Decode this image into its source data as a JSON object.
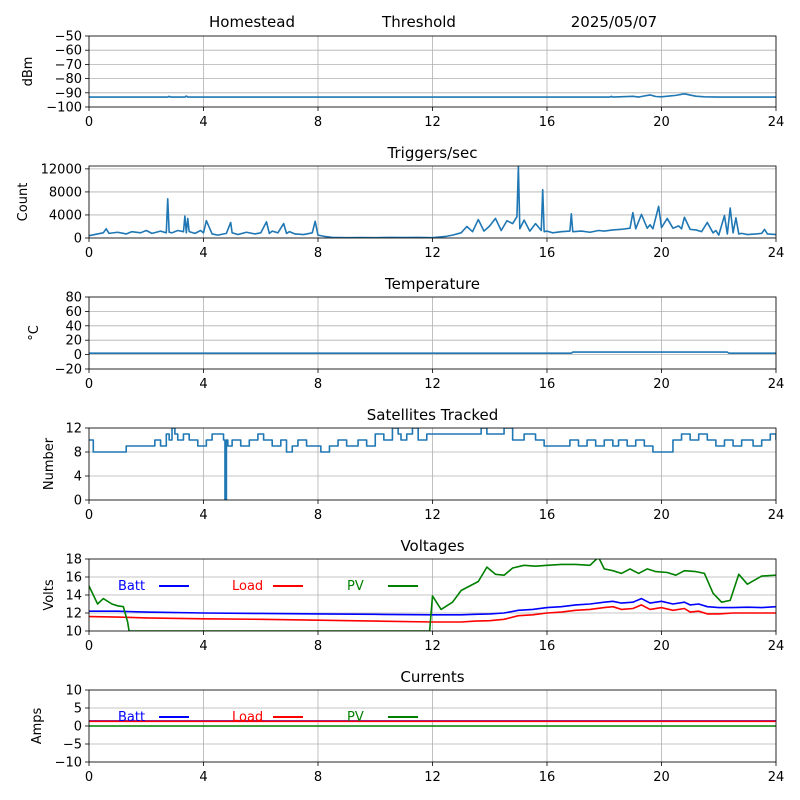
{
  "header": {
    "station": "Homestead",
    "threshold": "Threshold",
    "date": "2025/05/07"
  },
  "colors": {
    "series": "#1f77b4",
    "batt": "#0000ff",
    "load": "#ff0000",
    "pv": "#008000",
    "grid": "#b0b0b0"
  },
  "chart_data": [
    {
      "type": "line",
      "title": "",
      "ylabel": "dBm",
      "xlim": [
        0,
        24
      ],
      "ylim": [
        -100,
        -50
      ],
      "xticks": [
        0,
        4,
        8,
        12,
        16,
        20,
        24
      ],
      "yticks": [
        -100,
        -90,
        -80,
        -70,
        -60,
        -50
      ],
      "grid": true,
      "series": [
        {
          "color": "#1f77b4",
          "x": [
            0,
            2.75,
            2.8,
            2.85,
            3.35,
            3.4,
            3.45,
            8,
            12,
            16,
            18.2,
            18.25,
            18.3,
            19,
            19.2,
            19.3,
            19.6,
            19.8,
            20,
            20.3,
            20.5,
            20.8,
            21,
            21.2,
            21.5,
            22,
            24
          ],
          "y": [
            -93,
            -93,
            -92.5,
            -93,
            -93,
            -92.3,
            -93,
            -93,
            -93,
            -93,
            -93,
            -92.5,
            -93,
            -92.5,
            -93,
            -92.6,
            -91.5,
            -92.6,
            -92.8,
            -92.2,
            -91.8,
            -90.7,
            -91.6,
            -92.4,
            -92.8,
            -93,
            -93
          ]
        }
      ]
    },
    {
      "type": "line",
      "title": "Triggers/sec",
      "ylabel": "Count",
      "xlim": [
        0,
        24
      ],
      "ylim": [
        0,
        12500
      ],
      "xticks": [
        0,
        4,
        8,
        12,
        16,
        20,
        24
      ],
      "yticks": [
        0,
        4000,
        8000,
        12000
      ],
      "grid": true,
      "series": [
        {
          "color": "#1f77b4",
          "x": [
            0,
            0.3,
            0.5,
            0.6,
            0.7,
            1.0,
            1.3,
            1.5,
            1.8,
            2.0,
            2.2,
            2.5,
            2.7,
            2.75,
            2.8,
            2.9,
            3.1,
            3.3,
            3.35,
            3.4,
            3.45,
            3.5,
            3.7,
            3.9,
            4.0,
            4.1,
            4.3,
            4.5,
            4.8,
            4.95,
            5.0,
            5.2,
            5.5,
            5.8,
            6.0,
            6.2,
            6.3,
            6.4,
            6.6,
            6.8,
            6.9,
            7.0,
            7.2,
            7.5,
            7.8,
            7.9,
            8.0,
            8.2,
            8.5,
            9.0,
            9.5,
            10.0,
            10.5,
            11.0,
            11.5,
            12.0,
            12.5,
            12.7,
            13.0,
            13.2,
            13.4,
            13.6,
            13.8,
            14.0,
            14.2,
            14.4,
            14.6,
            14.8,
            14.95,
            15.0,
            15.05,
            15.2,
            15.4,
            15.6,
            15.8,
            15.85,
            15.9,
            16.0,
            16.2,
            16.5,
            16.8,
            16.85,
            16.9,
            17.2,
            17.5,
            17.8,
            18.0,
            18.3,
            18.6,
            18.9,
            19.0,
            19.1,
            19.3,
            19.5,
            19.6,
            19.7,
            19.9,
            20.0,
            20.2,
            20.4,
            20.6,
            20.7,
            20.8,
            21.0,
            21.2,
            21.4,
            21.6,
            21.8,
            21.9,
            22.0,
            22.2,
            22.3,
            22.4,
            22.5,
            22.6,
            22.7,
            22.8,
            23.0,
            23.3,
            23.5,
            23.6,
            23.7,
            24.0
          ],
          "y": [
            400,
            700,
            900,
            1600,
            800,
            1000,
            700,
            1100,
            900,
            1300,
            800,
            1200,
            900,
            6800,
            1000,
            900,
            1300,
            1100,
            3800,
            900,
            3400,
            1100,
            800,
            1300,
            900,
            3000,
            700,
            500,
            800,
            2700,
            900,
            600,
            1000,
            700,
            900,
            2800,
            800,
            1200,
            900,
            2500,
            800,
            1100,
            700,
            600,
            900,
            2900,
            500,
            300,
            100,
            50,
            80,
            60,
            90,
            70,
            100,
            60,
            300,
            500,
            900,
            2000,
            1100,
            3200,
            1200,
            2100,
            3400,
            1300,
            3000,
            2500,
            3700,
            12400,
            1600,
            3100,
            1200,
            2500,
            1300,
            8400,
            1100,
            1200,
            900,
            1100,
            1200,
            4200,
            1100,
            1200,
            1000,
            1300,
            1200,
            1400,
            1500,
            1700,
            4400,
            1600,
            4100,
            1700,
            2300,
            1600,
            5500,
            1800,
            3400,
            1700,
            2100,
            1600,
            3600,
            1500,
            1400,
            1100,
            2700,
            900,
            1300,
            500,
            3900,
            700,
            5200,
            900,
            3500,
            700,
            800,
            600,
            700,
            800,
            1500,
            700,
            600
          ]
        }
      ]
    },
    {
      "type": "line",
      "title": "Temperature",
      "ylabel": "°C",
      "xlim": [
        0,
        24
      ],
      "ylim": [
        -20,
        80
      ],
      "xticks": [
        0,
        4,
        8,
        12,
        16,
        20,
        24
      ],
      "yticks": [
        -20,
        0,
        20,
        40,
        60,
        80
      ],
      "grid": true,
      "series": [
        {
          "color": "#1f77b4",
          "x": [
            0,
            16.85,
            16.9,
            22.3,
            22.35,
            24
          ],
          "y": [
            2,
            2,
            3.5,
            3.5,
            2,
            2
          ]
        }
      ]
    },
    {
      "type": "line",
      "title": "Satellites Tracked",
      "ylabel": "Number",
      "xlim": [
        0,
        24
      ],
      "ylim": [
        0,
        12
      ],
      "xticks": [
        0,
        4,
        8,
        12,
        16,
        20,
        24
      ],
      "yticks": [
        0,
        4,
        8,
        12
      ],
      "grid": true,
      "series": [
        {
          "color": "#1f77b4",
          "step": true,
          "x": [
            0,
            0.15,
            1.1,
            1.3,
            1.8,
            2.3,
            2.5,
            2.7,
            2.8,
            2.9,
            3.0,
            3.1,
            3.3,
            3.5,
            3.8,
            4.1,
            4.3,
            4.7,
            4.75,
            4.8,
            4.85,
            5.0,
            5.3,
            5.6,
            5.9,
            6.1,
            6.4,
            6.7,
            6.9,
            7.1,
            7.3,
            7.6,
            8.1,
            8.4,
            8.7,
            9.0,
            9.4,
            9.7,
            10.0,
            10.3,
            10.6,
            10.8,
            10.9,
            11.1,
            11.3,
            11.5,
            11.8,
            12.1,
            12.4,
            13.0,
            13.5,
            13.7,
            13.9,
            14.2,
            14.5,
            14.8,
            15.2,
            15.6,
            15.9,
            16.5,
            16.8,
            17.1,
            17.4,
            17.7,
            18.0,
            18.3,
            18.5,
            18.8,
            19.1,
            19.4,
            19.7,
            20.2,
            20.4,
            20.7,
            21.0,
            21.3,
            21.6,
            21.9,
            22.2,
            22.5,
            22.8,
            23.2,
            23.5,
            23.8,
            24.0
          ],
          "y": [
            10,
            8,
            8,
            9,
            9,
            10,
            9,
            11,
            10,
            12,
            11,
            10,
            11,
            10,
            9,
            10,
            11,
            10,
            0,
            10,
            9,
            10,
            9,
            10,
            11,
            10,
            9,
            10,
            8,
            9,
            10,
            9,
            8,
            9,
            10,
            9,
            10,
            9,
            11,
            10,
            12,
            11,
            10,
            11,
            12,
            10,
            11,
            11,
            11,
            11,
            11,
            12,
            11,
            11,
            12,
            10,
            11,
            10,
            9,
            9,
            10,
            9,
            10,
            9,
            10,
            9,
            10,
            9,
            10,
            9,
            8,
            8,
            10,
            11,
            10,
            11,
            10,
            9,
            10,
            9,
            10,
            9,
            10,
            11,
            10
          ]
        }
      ]
    },
    {
      "type": "line",
      "title": "Voltages",
      "ylabel": "Volts",
      "xlim": [
        0,
        24
      ],
      "ylim": [
        10,
        18
      ],
      "xticks": [
        0,
        4,
        8,
        12,
        16,
        20,
        24
      ],
      "yticks": [
        10,
        12,
        14,
        16,
        18
      ],
      "grid": true,
      "legend": {
        "entries": [
          "Batt",
          "Load",
          "PV"
        ],
        "position": "upper-left"
      },
      "series": [
        {
          "name": "Batt",
          "color": "#0000ff",
          "x": [
            0,
            1,
            2,
            4,
            6,
            8,
            10,
            12,
            13,
            13.5,
            14,
            14.5,
            15,
            15.5,
            16,
            16.5,
            17,
            17.5,
            18,
            18.3,
            18.6,
            19,
            19.3,
            19.6,
            20,
            20.4,
            20.8,
            21,
            21.3,
            21.6,
            22,
            22.5,
            23,
            23.5,
            24
          ],
          "y": [
            12.2,
            12.2,
            12.1,
            12.0,
            11.95,
            11.9,
            11.85,
            11.8,
            11.8,
            11.85,
            11.9,
            12.0,
            12.3,
            12.4,
            12.6,
            12.7,
            12.9,
            13.0,
            13.2,
            13.3,
            13.1,
            13.2,
            13.6,
            13.1,
            13.3,
            13.0,
            13.2,
            12.9,
            13.0,
            12.7,
            12.6,
            12.6,
            12.65,
            12.6,
            12.7
          ]
        },
        {
          "name": "Load",
          "color": "#ff0000",
          "x": [
            0,
            1,
            2,
            4,
            6,
            8,
            10,
            12,
            13,
            13.5,
            14,
            14.5,
            15,
            15.5,
            16,
            16.5,
            17,
            17.5,
            18,
            18.3,
            18.6,
            19,
            19.3,
            19.6,
            20,
            20.4,
            20.8,
            21,
            21.3,
            21.6,
            22,
            22.5,
            23,
            23.5,
            24
          ],
          "y": [
            11.6,
            11.55,
            11.45,
            11.35,
            11.3,
            11.2,
            11.1,
            11.0,
            11.0,
            11.1,
            11.15,
            11.3,
            11.7,
            11.8,
            12.0,
            12.1,
            12.3,
            12.4,
            12.6,
            12.7,
            12.4,
            12.5,
            12.9,
            12.4,
            12.6,
            12.3,
            12.5,
            12.1,
            12.2,
            11.9,
            11.9,
            12.0,
            12.0,
            12.0,
            12.0
          ]
        },
        {
          "name": "PV",
          "color": "#008000",
          "x": [
            0,
            0.3,
            0.5,
            0.8,
            1.0,
            1.2,
            1.35,
            1.4,
            11.9,
            12.0,
            12.3,
            12.7,
            13.0,
            13.3,
            13.6,
            13.9,
            14.2,
            14.5,
            14.8,
            15.2,
            15.6,
            16.0,
            16.5,
            17.0,
            17.5,
            17.8,
            18.0,
            18.3,
            18.6,
            18.9,
            19.2,
            19.5,
            19.8,
            20.2,
            20.5,
            20.8,
            21.2,
            21.5,
            21.8,
            22.1,
            22.4,
            22.7,
            23.0,
            23.5,
            24.0
          ],
          "y": [
            15.0,
            13.0,
            13.6,
            13.0,
            12.8,
            12.7,
            11.0,
            10.0,
            10.0,
            13.9,
            12.4,
            13.2,
            14.5,
            15.0,
            15.5,
            17.1,
            16.3,
            16.2,
            17.0,
            17.3,
            17.2,
            17.3,
            17.4,
            17.4,
            17.3,
            18.2,
            16.9,
            16.7,
            16.4,
            16.9,
            16.4,
            16.9,
            16.6,
            16.5,
            16.2,
            16.7,
            16.6,
            16.4,
            14.2,
            13.2,
            13.4,
            16.3,
            15.2,
            16.1,
            16.2
          ]
        }
      ]
    },
    {
      "type": "line",
      "title": "Currents",
      "ylabel": "Amps",
      "xlim": [
        0,
        24
      ],
      "ylim": [
        -10,
        10
      ],
      "xticks": [
        0,
        4,
        8,
        12,
        16,
        20,
        24
      ],
      "yticks": [
        -10,
        -5,
        0,
        5,
        10
      ],
      "grid": true,
      "legend": {
        "entries": [
          "Batt",
          "Load",
          "PV"
        ],
        "position": "upper-left"
      },
      "series": [
        {
          "name": "Batt",
          "color": "#0000ff",
          "x": [
            0,
            24
          ],
          "y": [
            1.4,
            1.4
          ]
        },
        {
          "name": "Load",
          "color": "#ff0000",
          "x": [
            0,
            24
          ],
          "y": [
            1.3,
            1.3
          ]
        },
        {
          "name": "PV",
          "color": "#008000",
          "x": [
            0,
            24
          ],
          "y": [
            0.0,
            0.0
          ]
        }
      ]
    }
  ]
}
